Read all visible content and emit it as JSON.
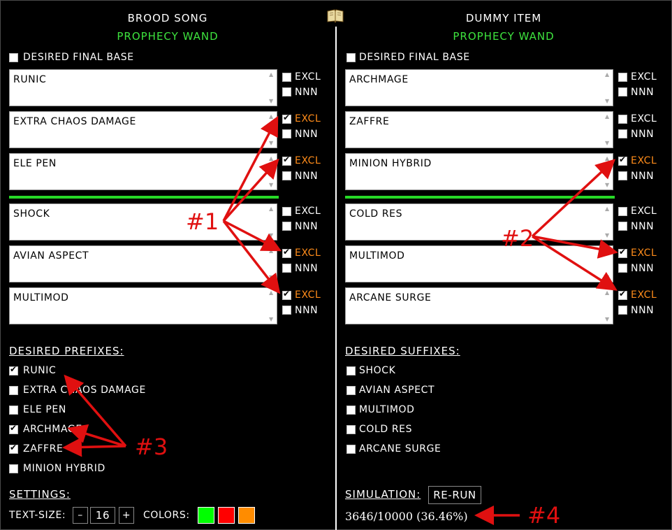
{
  "left": {
    "title": "BROOD SONG",
    "subtitle": "PROPHECY WAND",
    "desired_final_base": "DESIRED FINAL BASE",
    "mods": [
      {
        "text": "RUNIC",
        "excl": false
      },
      {
        "text": "EXTRA CHAOS DAMAGE",
        "excl": true
      },
      {
        "text": "ELE PEN",
        "excl": true
      },
      {
        "text": "SHOCK",
        "excl": false
      },
      {
        "text": "AVIAN ASPECT",
        "excl": true
      },
      {
        "text": "MULTIMOD",
        "excl": true
      }
    ],
    "desired_header": "DESIRED PREFIXES:",
    "desired": [
      {
        "label": "RUNIC",
        "checked": true
      },
      {
        "label": "EXTRA CHAOS DAMAGE",
        "checked": false
      },
      {
        "label": "ELE PEN",
        "checked": false
      },
      {
        "label": "ARCHMAGE",
        "checked": true
      },
      {
        "label": "ZAFFRE",
        "checked": true
      },
      {
        "label": "MINION HYBRID",
        "checked": false
      }
    ]
  },
  "right": {
    "title": "DUMMY ITEM",
    "subtitle": "PROPHECY WAND",
    "desired_final_base": "DESIRED FINAL BASE",
    "mods": [
      {
        "text": "ARCHMAGE",
        "excl": false
      },
      {
        "text": "ZAFFRE",
        "excl": false
      },
      {
        "text": "MINION HYBRID",
        "excl": true
      },
      {
        "text": "COLD RES",
        "excl": false
      },
      {
        "text": "MULTIMOD",
        "excl": true
      },
      {
        "text": "ARCANE SURGE",
        "excl": true
      }
    ],
    "desired_header": "DESIRED SUFFIXES:",
    "desired": [
      {
        "label": "SHOCK",
        "checked": false
      },
      {
        "label": "AVIAN ASPECT",
        "checked": false
      },
      {
        "label": "MULTIMOD",
        "checked": false
      },
      {
        "label": "COLD RES",
        "checked": false
      },
      {
        "label": "ARCANE SURGE",
        "checked": false
      }
    ]
  },
  "flags": {
    "excl": "EXCL",
    "nnn": "NNN"
  },
  "settings": {
    "header": "SETTINGS:",
    "text_size_label": "TEXT-SIZE:",
    "minus": "–",
    "value": "16",
    "plus": "+",
    "colors_label": "COLORS:",
    "colors": [
      "#00ff00",
      "#ff0000",
      "#ff8c00"
    ]
  },
  "simulation": {
    "header": "SIMULATION:",
    "rerun": "RE-RUN",
    "result": "3646/10000 (36.46%)"
  },
  "annotations": {
    "a1": "#1",
    "a2": "#2",
    "a3": "#3",
    "a4": "#4"
  },
  "theme": {
    "excl_on": "#ff8c1a",
    "accent_green": "#3ee33e",
    "annotation_red": "#e01010"
  },
  "icons": {
    "book": "book-icon"
  }
}
